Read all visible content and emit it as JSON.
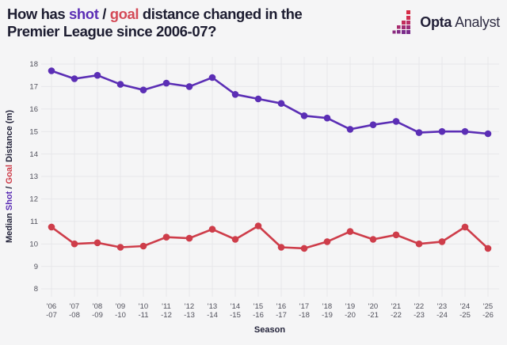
{
  "header": {
    "title": {
      "line1_prefix": "How has ",
      "shot_word": "shot",
      "separator": " / ",
      "goal_word": "goal",
      "line1_suffix": " distance changed in the",
      "line2": "Premier League since 2006-07?"
    },
    "logo": {
      "brand_bold": "Opta",
      "brand_light": "Analyst",
      "icon": "opta-bars-icon"
    }
  },
  "colors": {
    "background": "#f5f5f6",
    "grid": "#e7e7ea",
    "tick_text": "#50505b",
    "axis_title_text": "#23233a",
    "title_navy": "#1d1d31",
    "shot_purple": "#5b2eb5",
    "goal_red": "#ce3d4a",
    "logo_red": "#d62b45",
    "logo_magenta": "#b92d66",
    "logo_purple": "#7b2b8a"
  },
  "chart_data": {
    "type": "line",
    "title": "How has shot / goal distance changed in the Premier League since 2006-07?",
    "xlabel": "Season",
    "ylabel": "Median Shot / Goal Distance (m)",
    "ylabel_parts": [
      {
        "text": "Median ",
        "color": "#23233a"
      },
      {
        "text": "Shot",
        "color": "#5b2eb5"
      },
      {
        "text": " / ",
        "color": "#23233a"
      },
      {
        "text": "Goal",
        "color": "#ce3d4a"
      },
      {
        "text": " Distance (m)",
        "color": "#23233a"
      }
    ],
    "ylim": [
      8,
      18
    ],
    "yticks": [
      8,
      9,
      10,
      11,
      12,
      13,
      14,
      15,
      16,
      17,
      18
    ],
    "grid": true,
    "legend_position": "none (series named in y-axis title colors)",
    "categories": [
      "'06-07",
      "'07-08",
      "'08-09",
      "'09-10",
      "'10-11",
      "'11-12",
      "'12-13",
      "'13-14",
      "'14-15",
      "'15-16",
      "'16-17",
      "'17-18",
      "'18-19",
      "'19-20",
      "'20-21",
      "'21-22",
      "'22-23",
      "'23-24",
      "'24-25",
      "'25-26"
    ],
    "series": [
      {
        "name": "Shot",
        "color": "#5b2eb5",
        "values": [
          17.7,
          17.35,
          17.5,
          17.1,
          16.85,
          17.15,
          17.0,
          17.4,
          16.65,
          16.45,
          16.25,
          15.7,
          15.6,
          15.1,
          15.3,
          15.45,
          14.95,
          15.0,
          15.0,
          14.9
        ]
      },
      {
        "name": "Goal",
        "color": "#ce3d4a",
        "values": [
          10.75,
          10.0,
          10.05,
          9.85,
          9.9,
          10.3,
          10.25,
          10.65,
          10.2,
          10.8,
          9.85,
          9.8,
          10.1,
          10.55,
          10.2,
          10.4,
          10.0,
          10.1,
          10.75,
          9.8
        ]
      }
    ]
  }
}
